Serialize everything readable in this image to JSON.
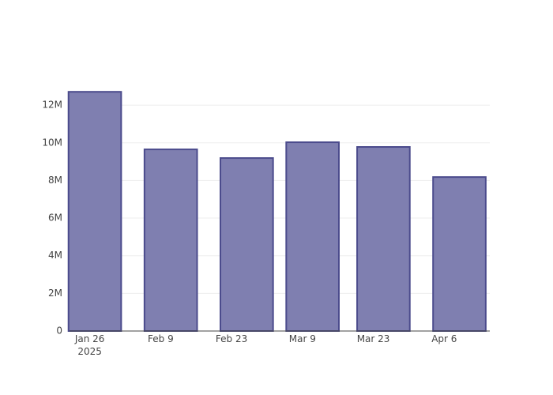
{
  "chart_data": {
    "type": "bar",
    "x": [
      "2025-01-27",
      "2025-02-11",
      "2025-02-26",
      "2025-03-11",
      "2025-03-25",
      "2025-04-09"
    ],
    "values": [
      12710000,
      9650000,
      9190000,
      10030000,
      9780000,
      8180000
    ],
    "color": "#7f7fb0",
    "line_color": "#4b4b8c",
    "xlim": [
      "2025-01-22",
      "2025-04-15"
    ],
    "xticks": [
      {
        "value": "2025-01-26",
        "label": "Jan 26\n2025"
      },
      {
        "value": "2025-02-09",
        "label": "Feb 9"
      },
      {
        "value": "2025-02-23",
        "label": "Feb 23"
      },
      {
        "value": "2025-03-09",
        "label": "Mar 9"
      },
      {
        "value": "2025-03-23",
        "label": "Mar 23"
      },
      {
        "value": "2025-04-06",
        "label": "Apr 6"
      }
    ],
    "ylim": [
      0,
      13390000
    ],
    "yticks": [
      0,
      {
        "value": 2000000,
        "label": "2M"
      },
      {
        "value": 4000000,
        "label": "4M"
      },
      {
        "value": 6000000,
        "label": "6M"
      },
      {
        "value": 8000000,
        "label": "8M"
      },
      {
        "value": 10000000,
        "label": "10M"
      },
      {
        "value": 12000000,
        "label": "12M"
      }
    ],
    "grid": true
  }
}
